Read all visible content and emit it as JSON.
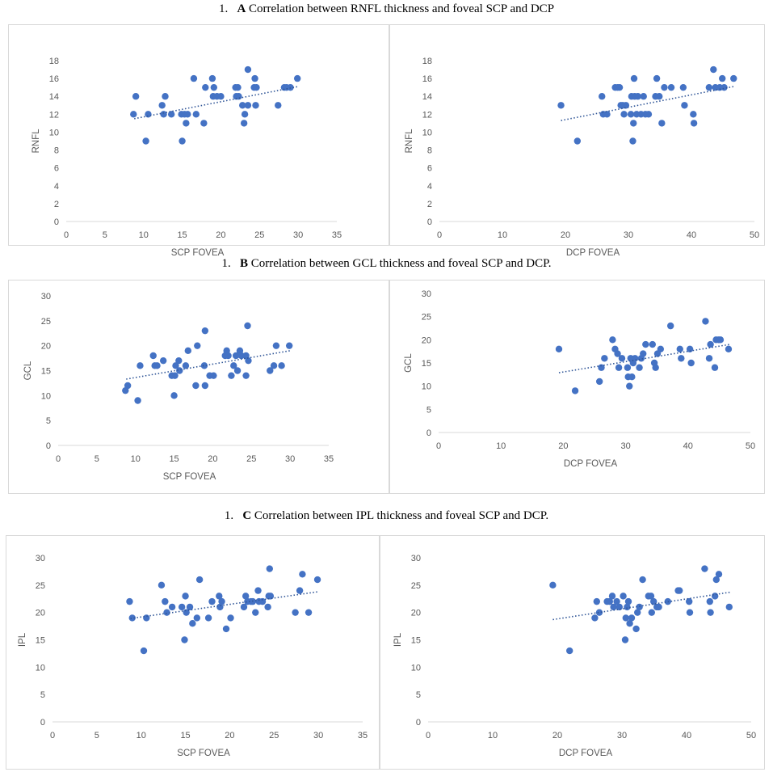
{
  "sections": [
    {
      "number": "1.",
      "letter": "A",
      "text": "Correlation between RNFL thickness and foveal SCP and DCP"
    },
    {
      "number": "1.",
      "letter": "B",
      "text": "Correlation between GCL thickness and foveal SCP and DCP."
    },
    {
      "number": "1.",
      "letter": "C",
      "text": "Correlation between IPL thickness and foveal SCP and DCP."
    }
  ],
  "colors": {
    "marker": "#4472c4",
    "trend": "#2f5597",
    "axis": "#d9d9d9",
    "text": "#595959"
  },
  "chart_data": [
    {
      "type": "scatter",
      "id": "A-SCP",
      "title": "",
      "xlabel": "SCP FOVEA",
      "ylabel": "RNFL",
      "xlim": [
        0,
        35
      ],
      "ylim": [
        0,
        18
      ],
      "xticks": [
        0,
        5,
        10,
        15,
        20,
        25,
        30,
        35
      ],
      "yticks": [
        0,
        2,
        4,
        6,
        8,
        10,
        12,
        14,
        16,
        18
      ],
      "trendline": {
        "type": "linear",
        "x": [
          8.8,
          30
        ],
        "y": [
          11.5,
          15.1
        ]
      },
      "points": [
        [
          8.7,
          12
        ],
        [
          9,
          14
        ],
        [
          10.3,
          9
        ],
        [
          10.6,
          12
        ],
        [
          12.4,
          13
        ],
        [
          12.6,
          12
        ],
        [
          12.8,
          14
        ],
        [
          13.6,
          12
        ],
        [
          14.9,
          12
        ],
        [
          15,
          9
        ],
        [
          15.3,
          12
        ],
        [
          15.5,
          11
        ],
        [
          15.7,
          12
        ],
        [
          16.5,
          16
        ],
        [
          16.8,
          12
        ],
        [
          17.8,
          11
        ],
        [
          18,
          15
        ],
        [
          18.9,
          16
        ],
        [
          19,
          14
        ],
        [
          19.1,
          15
        ],
        [
          19.5,
          14
        ],
        [
          20,
          14
        ],
        [
          21.9,
          15
        ],
        [
          22,
          14
        ],
        [
          22.2,
          15
        ],
        [
          22.3,
          14
        ],
        [
          22.8,
          13
        ],
        [
          23,
          11
        ],
        [
          23.1,
          12
        ],
        [
          23.5,
          13
        ],
        [
          23.5,
          17
        ],
        [
          24.3,
          15
        ],
        [
          24.4,
          16
        ],
        [
          24.5,
          13
        ],
        [
          24.6,
          15
        ],
        [
          27.4,
          13
        ],
        [
          28.2,
          15
        ],
        [
          28.5,
          15
        ],
        [
          29,
          15
        ],
        [
          29.9,
          16
        ]
      ]
    },
    {
      "type": "scatter",
      "id": "A-DCP",
      "title": "",
      "xlabel": "DCP FOVEA",
      "ylabel": "RNFL",
      "xlim": [
        0,
        50
      ],
      "ylim": [
        0,
        18
      ],
      "xticks": [
        0,
        10,
        20,
        30,
        40,
        50
      ],
      "yticks": [
        0,
        2,
        4,
        6,
        8,
        10,
        12,
        14,
        16,
        18
      ],
      "trendline": {
        "type": "linear",
        "x": [
          19.3,
          46.7
        ],
        "y": [
          11.3,
          15.1
        ]
      },
      "points": [
        [
          19.3,
          13
        ],
        [
          21.9,
          9
        ],
        [
          25.8,
          14
        ],
        [
          26,
          12
        ],
        [
          26.6,
          12
        ],
        [
          27.9,
          15
        ],
        [
          28.3,
          15
        ],
        [
          28.6,
          15
        ],
        [
          28.8,
          13
        ],
        [
          29.1,
          13
        ],
        [
          29.3,
          12
        ],
        [
          29.6,
          13
        ],
        [
          30.4,
          12
        ],
        [
          30.5,
          14
        ],
        [
          30.7,
          9
        ],
        [
          30.8,
          11
        ],
        [
          30.9,
          16
        ],
        [
          31,
          14
        ],
        [
          31.3,
          12
        ],
        [
          31.5,
          14
        ],
        [
          32,
          12
        ],
        [
          32.4,
          14
        ],
        [
          32.7,
          12
        ],
        [
          33.2,
          12
        ],
        [
          34.3,
          14
        ],
        [
          34.5,
          16
        ],
        [
          34.9,
          14
        ],
        [
          35.3,
          11
        ],
        [
          35.7,
          15
        ],
        [
          36.8,
          15
        ],
        [
          38.7,
          15
        ],
        [
          38.9,
          13
        ],
        [
          40.3,
          12
        ],
        [
          40.4,
          11
        ],
        [
          42.8,
          15
        ],
        [
          43.5,
          17
        ],
        [
          43.8,
          15
        ],
        [
          44.5,
          15
        ],
        [
          44.9,
          16
        ],
        [
          45.2,
          15
        ],
        [
          46.7,
          16
        ]
      ]
    },
    {
      "type": "scatter",
      "id": "B-SCP",
      "title": "",
      "xlabel": "SCP FOVEA",
      "ylabel": "GCL",
      "xlim": [
        0,
        35
      ],
      "ylim": [
        0,
        30
      ],
      "xticks": [
        0,
        5,
        10,
        15,
        20,
        25,
        30,
        35
      ],
      "yticks": [
        0,
        5,
        10,
        15,
        20,
        25,
        30
      ],
      "trendline": {
        "type": "linear",
        "x": [
          8.8,
          30
        ],
        "y": [
          13.3,
          19
        ]
      },
      "points": [
        [
          8.7,
          11
        ],
        [
          9,
          12
        ],
        [
          10.3,
          9
        ],
        [
          10.6,
          16
        ],
        [
          12.3,
          18
        ],
        [
          12.5,
          16
        ],
        [
          12.8,
          16
        ],
        [
          13.6,
          17
        ],
        [
          14.7,
          14
        ],
        [
          15,
          10
        ],
        [
          15.1,
          14
        ],
        [
          15.2,
          16
        ],
        [
          15.6,
          17
        ],
        [
          15.7,
          15
        ],
        [
          16.5,
          16
        ],
        [
          16.8,
          19
        ],
        [
          17.8,
          12
        ],
        [
          18,
          20
        ],
        [
          18.9,
          16
        ],
        [
          19,
          23
        ],
        [
          19,
          12
        ],
        [
          19.6,
          14
        ],
        [
          20.1,
          14
        ],
        [
          21.6,
          18
        ],
        [
          21.8,
          19
        ],
        [
          22,
          18
        ],
        [
          22.4,
          14
        ],
        [
          22.7,
          16
        ],
        [
          23,
          18
        ],
        [
          23.2,
          15
        ],
        [
          23.5,
          19
        ],
        [
          23.7,
          18
        ],
        [
          24.3,
          14
        ],
        [
          24.3,
          18
        ],
        [
          24.5,
          24
        ],
        [
          24.6,
          17
        ],
        [
          27.4,
          15
        ],
        [
          27.9,
          16
        ],
        [
          28.2,
          20
        ],
        [
          28.9,
          16
        ],
        [
          29.9,
          20
        ]
      ]
    },
    {
      "type": "scatter",
      "id": "B-DCP",
      "title": "",
      "xlabel": "DCP FOVEA",
      "ylabel": "GCL",
      "xlim": [
        0,
        50
      ],
      "ylim": [
        0,
        30
      ],
      "xticks": [
        0,
        10,
        20,
        30,
        40,
        50
      ],
      "yticks": [
        0,
        5,
        10,
        15,
        20,
        25,
        30
      ],
      "trendline": {
        "type": "linear",
        "x": [
          19.3,
          46.7
        ],
        "y": [
          12.9,
          19
        ]
      },
      "points": [
        [
          19.3,
          18
        ],
        [
          21.9,
          9
        ],
        [
          25.8,
          11
        ],
        [
          26.1,
          14
        ],
        [
          26.6,
          16
        ],
        [
          27.9,
          20
        ],
        [
          28.3,
          18
        ],
        [
          28.7,
          17
        ],
        [
          28.9,
          14
        ],
        [
          29.4,
          16
        ],
        [
          30.3,
          14
        ],
        [
          30.4,
          12
        ],
        [
          30.6,
          10
        ],
        [
          30.8,
          16
        ],
        [
          31,
          12
        ],
        [
          31.2,
          15
        ],
        [
          31.5,
          16
        ],
        [
          32.2,
          14
        ],
        [
          32.5,
          16
        ],
        [
          32.8,
          17
        ],
        [
          33.2,
          19
        ],
        [
          34.3,
          19
        ],
        [
          34.6,
          15
        ],
        [
          34.8,
          14
        ],
        [
          35.1,
          17
        ],
        [
          35.6,
          18
        ],
        [
          37.2,
          23
        ],
        [
          38.7,
          18
        ],
        [
          38.9,
          16
        ],
        [
          40.3,
          18
        ],
        [
          40.5,
          15
        ],
        [
          42.8,
          24
        ],
        [
          43.4,
          16
        ],
        [
          43.6,
          19
        ],
        [
          44.3,
          14
        ],
        [
          44.5,
          20
        ],
        [
          44.9,
          20
        ],
        [
          45.2,
          20
        ],
        [
          46.5,
          18
        ]
      ]
    },
    {
      "type": "scatter",
      "id": "C-SCP",
      "title": "",
      "xlabel": "SCP FOVEA",
      "ylabel": "IPL",
      "xlim": [
        0,
        35
      ],
      "ylim": [
        0,
        30
      ],
      "xticks": [
        0,
        5,
        10,
        15,
        20,
        25,
        30,
        35
      ],
      "yticks": [
        0,
        5,
        10,
        15,
        20,
        25,
        30
      ],
      "trendline": {
        "type": "linear",
        "x": [
          8.8,
          30
        ],
        "y": [
          18.9,
          23.8
        ]
      },
      "points": [
        [
          8.7,
          22
        ],
        [
          9,
          19
        ],
        [
          10.3,
          13
        ],
        [
          10.6,
          19
        ],
        [
          12.3,
          25
        ],
        [
          12.7,
          22
        ],
        [
          12.9,
          20
        ],
        [
          13.5,
          21
        ],
        [
          14.6,
          21
        ],
        [
          14.9,
          15
        ],
        [
          15,
          23
        ],
        [
          15.1,
          20
        ],
        [
          15.5,
          21
        ],
        [
          15.8,
          18
        ],
        [
          16.3,
          19
        ],
        [
          16.6,
          26
        ],
        [
          17.6,
          19
        ],
        [
          18,
          22
        ],
        [
          18.8,
          23
        ],
        [
          18.9,
          21
        ],
        [
          19.1,
          22
        ],
        [
          19.6,
          17
        ],
        [
          20.1,
          19
        ],
        [
          21.6,
          21
        ],
        [
          21.8,
          23
        ],
        [
          22,
          22
        ],
        [
          22.4,
          22
        ],
        [
          22.6,
          22
        ],
        [
          22.9,
          20
        ],
        [
          23.2,
          24
        ],
        [
          23.3,
          22
        ],
        [
          23.7,
          22
        ],
        [
          24.3,
          21
        ],
        [
          24.4,
          23
        ],
        [
          24.5,
          28
        ],
        [
          24.6,
          23
        ],
        [
          27.4,
          20
        ],
        [
          27.9,
          24
        ],
        [
          28.2,
          27
        ],
        [
          28.9,
          20
        ],
        [
          29.9,
          26
        ]
      ]
    },
    {
      "type": "scatter",
      "id": "C-DCP",
      "title": "",
      "xlabel": "DCP FOVEA",
      "ylabel": "IPL",
      "xlim": [
        0,
        50
      ],
      "ylim": [
        0,
        30
      ],
      "xticks": [
        0,
        10,
        20,
        30,
        40,
        50
      ],
      "yticks": [
        0,
        5,
        10,
        15,
        20,
        25,
        30
      ],
      "trendline": {
        "type": "linear",
        "x": [
          19.3,
          46.7
        ],
        "y": [
          18.7,
          23.7
        ]
      },
      "points": [
        [
          19.3,
          25
        ],
        [
          21.9,
          13
        ],
        [
          25.8,
          19
        ],
        [
          26.1,
          22
        ],
        [
          26.5,
          20
        ],
        [
          27.7,
          22
        ],
        [
          28.1,
          22
        ],
        [
          28.5,
          23
        ],
        [
          28.7,
          21
        ],
        [
          29.2,
          22
        ],
        [
          29.6,
          21
        ],
        [
          30.2,
          23
        ],
        [
          30.5,
          15
        ],
        [
          30.6,
          19
        ],
        [
          30.8,
          21
        ],
        [
          31,
          22
        ],
        [
          31.2,
          18
        ],
        [
          31.5,
          19
        ],
        [
          32.2,
          17
        ],
        [
          32.4,
          20
        ],
        [
          32.7,
          21
        ],
        [
          33.2,
          26
        ],
        [
          34.1,
          23
        ],
        [
          34.5,
          23
        ],
        [
          34.6,
          20
        ],
        [
          34.9,
          22
        ],
        [
          35.4,
          21
        ],
        [
          35.7,
          21
        ],
        [
          37.1,
          22
        ],
        [
          38.7,
          24
        ],
        [
          38.9,
          24
        ],
        [
          40.4,
          22
        ],
        [
          40.5,
          20
        ],
        [
          42.8,
          28
        ],
        [
          43.6,
          22
        ],
        [
          43.7,
          20
        ],
        [
          44.4,
          23
        ],
        [
          44.6,
          26
        ],
        [
          45,
          27
        ],
        [
          46.6,
          21
        ]
      ]
    }
  ]
}
